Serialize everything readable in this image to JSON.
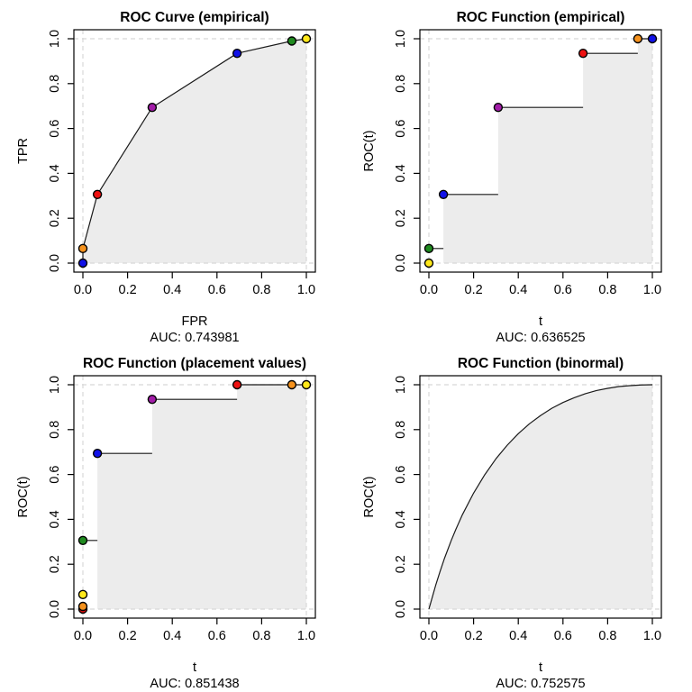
{
  "colors": {
    "shade": "#ECECEC",
    "grid": "#D8D8D8",
    "line": "#1A1A1A",
    "point_stroke": "#000000",
    "palette": {
      "blue": "#1111E8",
      "orange": "#F5921D",
      "red": "#EE1111",
      "purple": "#A21CA8",
      "green": "#1F8A1F",
      "yellow": "#FFE81A"
    }
  },
  "axis": {
    "ticks": [
      0,
      0.2,
      0.4,
      0.6,
      0.8,
      1.0
    ],
    "tick_labels": [
      "0.0",
      "0.2",
      "0.4",
      "0.6",
      "0.8",
      "1.0"
    ],
    "xlim": [
      0,
      1
    ],
    "ylim": [
      0,
      1
    ]
  },
  "chart_data": [
    {
      "type": "line",
      "title": "ROC Curve (empirical)",
      "xlabel": "FPR",
      "ylabel": "TPR",
      "auc": 0.743981,
      "auc_label": "AUC: 0.743981",
      "grid": {
        "v": [
          0,
          1
        ],
        "h": [
          0,
          1
        ],
        "style": "dashed"
      },
      "line": [
        [
          0,
          0
        ],
        [
          0,
          0.065
        ],
        [
          0.065,
          0.306
        ],
        [
          0.31,
          0.694
        ],
        [
          0.69,
          0.935
        ],
        [
          0.935,
          0.99
        ],
        [
          1,
          1
        ]
      ],
      "points": [
        {
          "x": 0,
          "y": 0,
          "color": "blue"
        },
        {
          "x": 0,
          "y": 0.065,
          "color": "orange"
        },
        {
          "x": 0.065,
          "y": 0.306,
          "color": "red"
        },
        {
          "x": 0.31,
          "y": 0.694,
          "color": "purple"
        },
        {
          "x": 0.69,
          "y": 0.935,
          "color": "blue"
        },
        {
          "x": 0.935,
          "y": 0.99,
          "color": "green"
        },
        {
          "x": 1,
          "y": 1,
          "color": "yellow"
        }
      ],
      "shade": [
        [
          0,
          0
        ],
        [
          0,
          0.065
        ],
        [
          0.065,
          0.306
        ],
        [
          0.31,
          0.694
        ],
        [
          0.69,
          0.935
        ],
        [
          0.935,
          0.99
        ],
        [
          1,
          1
        ],
        [
          1,
          0
        ]
      ]
    },
    {
      "type": "step",
      "title": "ROC Function (empirical)",
      "xlabel": "t",
      "ylabel": "ROC(t)",
      "auc": 0.636525,
      "auc_label": "AUC: 0.636525",
      "grid": {
        "v": [
          0,
          1
        ],
        "h": [
          0,
          1
        ],
        "style": "dashed"
      },
      "segments": [
        [
          0,
          0.065,
          0.065,
          0.065
        ],
        [
          0.065,
          0.306,
          0.31,
          0.306
        ],
        [
          0.31,
          0.694,
          0.69,
          0.694
        ],
        [
          0.69,
          0.935,
          0.935,
          0.935
        ],
        [
          0.935,
          1,
          1,
          1
        ]
      ],
      "points": [
        {
          "x": 0,
          "y": 0,
          "color": "yellow"
        },
        {
          "x": 0,
          "y": 0.065,
          "color": "green"
        },
        {
          "x": 0.065,
          "y": 0.306,
          "color": "blue"
        },
        {
          "x": 0.31,
          "y": 0.694,
          "color": "purple"
        },
        {
          "x": 0.69,
          "y": 0.935,
          "color": "red"
        },
        {
          "x": 0.935,
          "y": 1,
          "color": "orange"
        },
        {
          "x": 1,
          "y": 1,
          "color": "blue"
        }
      ],
      "shade": [
        [
          0,
          0
        ],
        [
          0.065,
          0
        ],
        [
          0.065,
          0.306
        ],
        [
          0.31,
          0.306
        ],
        [
          0.31,
          0.694
        ],
        [
          0.69,
          0.694
        ],
        [
          0.69,
          0.935
        ],
        [
          0.935,
          0.935
        ],
        [
          0.935,
          1
        ],
        [
          1,
          1
        ],
        [
          1,
          0
        ]
      ]
    },
    {
      "type": "step",
      "title": "ROC Function (placement values)",
      "xlabel": "t",
      "ylabel": "ROC(t)",
      "auc": 0.851438,
      "auc_label": "AUC: 0.851438",
      "grid": {
        "v": [
          0,
          1
        ],
        "h": [
          0,
          1
        ],
        "style": "dashed"
      },
      "segments": [
        [
          0,
          0.306,
          0.065,
          0.306
        ],
        [
          0.065,
          0.694,
          0.31,
          0.694
        ],
        [
          0.31,
          0.935,
          0.69,
          0.935
        ],
        [
          0.69,
          1,
          1,
          1
        ]
      ],
      "points": [
        {
          "x": 0,
          "y": 0,
          "color": "red"
        },
        {
          "x": 0,
          "y": 0.012,
          "color": "orange"
        },
        {
          "x": 0,
          "y": 0.065,
          "color": "yellow"
        },
        {
          "x": 0,
          "y": 0.306,
          "color": "green"
        },
        {
          "x": 0.065,
          "y": 0.694,
          "color": "blue"
        },
        {
          "x": 0.31,
          "y": 0.935,
          "color": "purple"
        },
        {
          "x": 0.69,
          "y": 1,
          "color": "red"
        },
        {
          "x": 0.935,
          "y": 1,
          "color": "orange"
        },
        {
          "x": 1,
          "y": 1,
          "color": "yellow"
        }
      ],
      "shade": [
        [
          0,
          0
        ],
        [
          0.065,
          0
        ],
        [
          0.065,
          0.694
        ],
        [
          0.31,
          0.694
        ],
        [
          0.31,
          0.935
        ],
        [
          0.69,
          0.935
        ],
        [
          0.69,
          1
        ],
        [
          1,
          1
        ],
        [
          1,
          0
        ]
      ]
    },
    {
      "type": "smooth",
      "title": "ROC Function (binormal)",
      "xlabel": "t",
      "ylabel": "ROC(t)",
      "auc": 0.752575,
      "auc_label": "AUC: 0.752575",
      "grid": {
        "v": [
          0,
          1
        ],
        "h": [
          0,
          1
        ],
        "style": "dashed"
      },
      "line": [
        [
          0,
          0
        ],
        [
          0.005,
          0.017
        ],
        [
          0.01,
          0.035
        ],
        [
          0.02,
          0.07
        ],
        [
          0.03,
          0.105
        ],
        [
          0.05,
          0.168
        ],
        [
          0.07,
          0.227
        ],
        [
          0.1,
          0.306
        ],
        [
          0.12,
          0.354
        ],
        [
          0.15,
          0.421
        ],
        [
          0.2,
          0.517
        ],
        [
          0.25,
          0.599
        ],
        [
          0.3,
          0.67
        ],
        [
          0.35,
          0.73
        ],
        [
          0.4,
          0.782
        ],
        [
          0.45,
          0.826
        ],
        [
          0.5,
          0.863
        ],
        [
          0.55,
          0.895
        ],
        [
          0.6,
          0.921
        ],
        [
          0.65,
          0.942
        ],
        [
          0.7,
          0.96
        ],
        [
          0.75,
          0.974
        ],
        [
          0.8,
          0.984
        ],
        [
          0.85,
          0.992
        ],
        [
          0.9,
          0.996
        ],
        [
          0.95,
          0.999
        ],
        [
          1,
          1
        ]
      ],
      "points": [],
      "shade": [
        [
          0,
          0
        ],
        [
          0.005,
          0.017
        ],
        [
          0.01,
          0.035
        ],
        [
          0.02,
          0.07
        ],
        [
          0.03,
          0.105
        ],
        [
          0.05,
          0.168
        ],
        [
          0.07,
          0.227
        ],
        [
          0.1,
          0.306
        ],
        [
          0.12,
          0.354
        ],
        [
          0.15,
          0.421
        ],
        [
          0.2,
          0.517
        ],
        [
          0.25,
          0.599
        ],
        [
          0.3,
          0.67
        ],
        [
          0.35,
          0.73
        ],
        [
          0.4,
          0.782
        ],
        [
          0.45,
          0.826
        ],
        [
          0.5,
          0.863
        ],
        [
          0.55,
          0.895
        ],
        [
          0.6,
          0.921
        ],
        [
          0.65,
          0.942
        ],
        [
          0.7,
          0.96
        ],
        [
          0.75,
          0.974
        ],
        [
          0.8,
          0.984
        ],
        [
          0.85,
          0.992
        ],
        [
          0.9,
          0.996
        ],
        [
          0.95,
          0.999
        ],
        [
          1,
          1
        ],
        [
          1,
          0
        ]
      ]
    }
  ]
}
